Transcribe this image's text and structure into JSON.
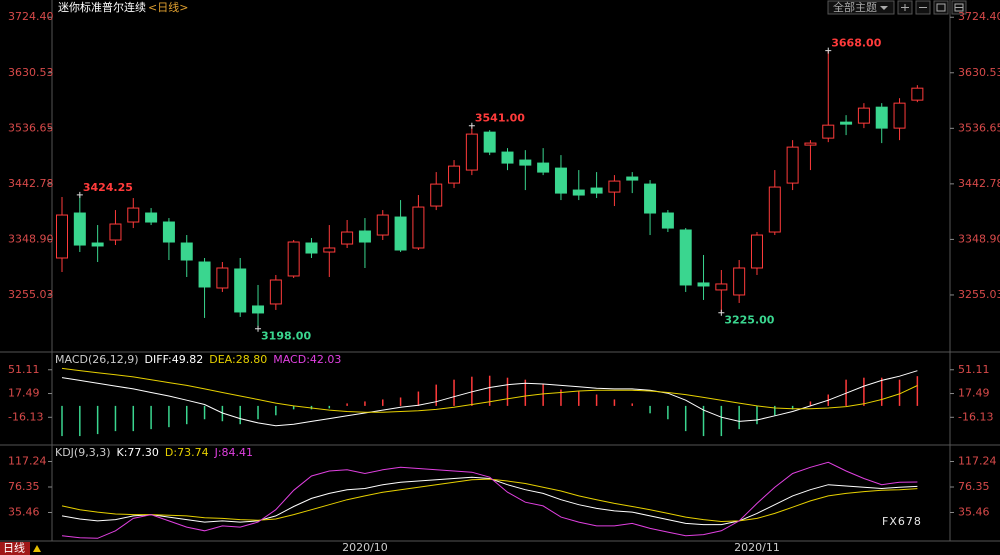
{
  "toolbar": {
    "theme": "全部主题"
  },
  "watermark": "FX678",
  "footer": {
    "period": "日线"
  },
  "chart_data": [
    {
      "type": "candlestick",
      "title": "迷你标准普尔连续",
      "subtitle": "<日线>",
      "up_color": "#ff3b3b",
      "down_color": "#3ad68f",
      "categories": [
        null,
        null,
        null,
        null,
        null,
        null,
        null,
        null,
        null,
        null,
        null,
        null,
        null,
        null,
        null,
        null,
        null,
        "2020/10",
        null,
        null,
        null,
        null,
        null,
        null,
        null,
        null,
        null,
        null,
        null,
        null,
        null,
        null,
        null,
        null,
        null,
        null,
        null,
        null,
        null,
        "2020/11",
        null,
        null,
        null,
        null,
        null,
        null,
        null,
        null,
        null
      ],
      "open": [
        3317.5,
        3393.5,
        3342.8,
        3347.9,
        3378.3,
        3393.5,
        3378.3,
        3342.8,
        3310.7,
        3266.8,
        3298.9,
        3236.4,
        3239.8,
        3287.1,
        3342.8,
        3327.6,
        3341.1,
        3363.1,
        3356.3,
        3386.7,
        3334.4,
        3405.3,
        3444.1,
        3466.1,
        3530.2,
        3496.5,
        3483.0,
        3477.9,
        3469.4,
        3432.3,
        3435.7,
        3428.9,
        3454.3,
        3442.4,
        3393.5,
        3364.8,
        3275.3,
        3263.5,
        3255.0,
        3300.6,
        3361.4,
        3444.1,
        3508.3,
        3520.1,
        3547.1,
        3545.4,
        3572.4,
        3537.0,
        3584.3
      ],
      "high": [
        3420.5,
        3424.25,
        3373.2,
        3398.5,
        3418.8,
        3401.9,
        3385.0,
        3356.3,
        3317.5,
        3310.7,
        3317.5,
        3271.9,
        3288.8,
        3347.9,
        3351.3,
        3373.2,
        3381.7,
        3385.0,
        3398.5,
        3415.4,
        3423.9,
        3462.7,
        3483.0,
        3541,
        3533.6,
        3503.2,
        3499.8,
        3503.2,
        3491.4,
        3466.1,
        3462.7,
        3457.6,
        3462.7,
        3449.2,
        3398.5,
        3368.1,
        3322.6,
        3297.2,
        3314.1,
        3361.4,
        3466.1,
        3516.7,
        3516.7,
        3668,
        3558.9,
        3579.2,
        3579.2,
        3587.6,
        3609.6
      ],
      "low": [
        3293.9,
        3327.6,
        3310.7,
        3339.4,
        3368.1,
        3373.2,
        3314.1,
        3285.4,
        3216.2,
        3260.1,
        3217.9,
        3198,
        3229.7,
        3283.7,
        3317.5,
        3285.4,
        3334.4,
        3300.6,
        3347.9,
        3327.6,
        3331.0,
        3398.5,
        3435.7,
        3457.6,
        3491.4,
        3466.1,
        3432.3,
        3457.6,
        3415.4,
        3415.4,
        3418.8,
        3405.3,
        3427.2,
        3356.3,
        3361.4,
        3260.1,
        3246.6,
        3225,
        3241.5,
        3288.8,
        3356.3,
        3432.3,
        3466.1,
        3513.3,
        3525.2,
        3537.0,
        3511.7,
        3516.7,
        3580.9
      ],
      "close": [
        3390.1,
        3339.4,
        3337.8,
        3374.9,
        3401.9,
        3378.3,
        3344.5,
        3314.1,
        3268.5,
        3300.6,
        3226.3,
        3224.6,
        3280.3,
        3344.5,
        3325.9,
        3334.4,
        3361.4,
        3344.5,
        3390.1,
        3331.0,
        3403.6,
        3442.4,
        3472.8,
        3526.9,
        3496.5,
        3477.9,
        3474.5,
        3462.7,
        3427.2,
        3423.9,
        3427.2,
        3447.5,
        3449.2,
        3393.5,
        3368.1,
        3271.9,
        3270.2,
        3273.6,
        3300.6,
        3356.3,
        3437.4,
        3504.9,
        3511.7,
        3542.0,
        3543.7,
        3570.8,
        3537.0,
        3579.2,
        3604.5
      ],
      "annotations": [
        {
          "value": 3424.25,
          "label": "3424.25",
          "color": "#ff3b3b"
        },
        {
          "value": 3198,
          "label": "3198.00",
          "color": "#3ad68f"
        },
        {
          "value": 3541,
          "label": "3541.00",
          "color": "#ff3b3b"
        },
        {
          "value": 3225,
          "label": "3225.00",
          "color": "#3ad68f"
        },
        {
          "value": 3668,
          "label": "3668.00",
          "color": "#ff3b3b"
        }
      ],
      "ylim": [
        3162,
        3740
      ],
      "yticks": [
        {
          "value": 3724.4,
          "label": "3724.40"
        },
        3630.53,
        3536.65,
        3442.78,
        {
          "value": 3348.9,
          "label": "3348.90"
        },
        3255.03
      ]
    },
    {
      "type": "macd",
      "title": "MACD(26,12,9)",
      "ylim": [
        -52.5,
        72
      ],
      "yticks": [
        51.11,
        17.49,
        -16.13
      ],
      "series": [
        {
          "name": "DIFF:49.82",
          "type": "line",
          "color": "#ffffff",
          "values": [
            40,
            36,
            32,
            28,
            24,
            19,
            14,
            8,
            2,
            -10,
            -18,
            -24,
            -28,
            -26,
            -22,
            -18,
            -14,
            -10,
            -6,
            -2,
            1,
            6,
            13,
            20,
            26,
            30,
            32,
            31,
            29,
            27,
            25,
            24,
            24,
            22,
            18,
            8,
            -6,
            -16,
            -22,
            -20,
            -14,
            -8,
            0,
            8,
            18,
            28,
            36,
            42,
            49.82
          ]
        },
        {
          "name": "DEA:28.80",
          "type": "line",
          "color": "#e6d000",
          "values": [
            53,
            50,
            47,
            44,
            41,
            37,
            33,
            29,
            24,
            19,
            14,
            9,
            4,
            0,
            -3,
            -6,
            -8,
            -9,
            -9,
            -8,
            -7,
            -5,
            -2,
            2,
            6,
            10,
            14,
            17,
            19,
            21,
            22,
            22,
            22,
            21,
            19,
            16,
            12,
            8,
            4,
            0,
            -3,
            -4,
            -4,
            -3,
            -1,
            3,
            9,
            17,
            28.8
          ]
        },
        {
          "name": "MACD:42.03",
          "type": "bar",
          "color": "#e040e0",
          "up_color": "#ff3b3b",
          "down_color": "#3ad68f",
          "values": [
            -42.7,
            -42.7,
            -39.9,
            -35.7,
            -35.7,
            -32.9,
            -30.1,
            -25.9,
            -18.9,
            -21.7,
            -25.9,
            -18.9,
            -13.3,
            -4.9,
            -4.9,
            -3.5,
            3.5,
            6.3,
            9.1,
            11.9,
            20.3,
            30.1,
            37.1,
            41.3,
            42.7,
            39.9,
            37.1,
            31.5,
            23.1,
            20.3,
            16.1,
            9.1,
            3.5,
            -10.5,
            -18.9,
            -35.7,
            -42.7,
            -42.7,
            -32.9,
            -25.9,
            -13.3,
            -4.9,
            6.3,
            16.1,
            37.1,
            39.9,
            39.9,
            37.1,
            42.03
          ]
        }
      ]
    },
    {
      "type": "line",
      "title": "KDJ(9,3,3)",
      "ylim": [
        -16.7,
        140.5
      ],
      "yticks": [
        117.24,
        76.35,
        35.46
      ],
      "series": [
        {
          "name": "K:77.30",
          "type": "line",
          "color": "#ffffff",
          "values": [
            30,
            25,
            22,
            24,
            30,
            32,
            28,
            24,
            20,
            22,
            20,
            22,
            30,
            45,
            58,
            66,
            72,
            74,
            80,
            84,
            86,
            88,
            90,
            92,
            90,
            80,
            72,
            66,
            56,
            48,
            42,
            38,
            36,
            30,
            24,
            18,
            16,
            16,
            22,
            34,
            48,
            62,
            72,
            80,
            78,
            76,
            74,
            76,
            77.3
          ]
        },
        {
          "name": "D:73.74",
          "type": "line",
          "color": "#e6d000",
          "values": [
            46,
            40,
            36,
            33,
            32,
            32,
            31,
            30,
            27,
            26,
            24,
            23,
            25,
            32,
            40,
            48,
            56,
            62,
            68,
            72,
            76,
            80,
            84,
            88,
            89,
            86,
            82,
            76,
            70,
            62,
            56,
            50,
            45,
            40,
            34,
            28,
            24,
            21,
            22,
            26,
            34,
            44,
            54,
            62,
            66,
            69,
            71,
            72,
            73.74
          ]
        },
        {
          "name": "J:84.41",
          "type": "line",
          "color": "#e040e0",
          "values": [
            -2,
            -5,
            -6,
            6,
            26,
            32,
            22,
            12,
            6,
            14,
            12,
            20,
            40,
            71,
            94,
            102,
            104,
            98,
            104,
            108,
            106,
            104,
            102,
            100,
            92,
            68,
            52,
            46,
            28,
            20,
            14,
            14,
            18,
            10,
            4,
            -2,
            0,
            6,
            22,
            50,
            76,
            98,
            108,
            116,
            102,
            90,
            80,
            84,
            84.41
          ]
        }
      ]
    }
  ]
}
